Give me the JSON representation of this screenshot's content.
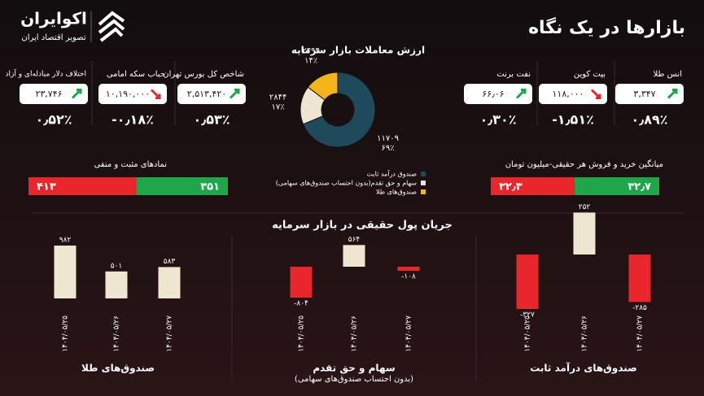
{
  "header": {
    "title": "بازارها در یک نگاه",
    "brand": "اکوایران",
    "tagline": "تصویر اقتصاد ایران"
  },
  "indicators": [
    {
      "title": "انس طلا",
      "value": "۳,۳۴۷",
      "change": "۰٫۸۹٪",
      "direction": "up"
    },
    {
      "title": "بیت کوین",
      "value": "۱۱۸,۰۰۰",
      "change": "-۱٫۵۱٪",
      "direction": "down"
    },
    {
      "title": "نفت برنت",
      "value": "۶۶٫۰۶",
      "change": "۰٫۳۰٪",
      "direction": "up"
    },
    {
      "title": "شاخص کل بورس تهران",
      "value": "۲,۵۱۳,۴۲۰",
      "change": "۰٫۵۳٪",
      "direction": "up"
    },
    {
      "title": "حباب سکه امامی",
      "value": "۱۰,۱۹۰,۰۰۰",
      "change": "-۰٫۱۸٪",
      "direction": "down"
    },
    {
      "title": "اختلاف دلار مبادله‌ای و آزاد",
      "value": "۲۳,۷۴۶",
      "change": "۰٫۵۲٪",
      "direction": "up"
    }
  ],
  "money_flow_title": "جریان پول حقیقی در بازار سرمایه",
  "chart_data": [
    {
      "type": "pie",
      "title": "ارزش معاملات  بازار سرمایه",
      "categories": [
        "صندوق درآمد ثابت",
        "سهام و حق تقدم(بدون احتساب صندوق‌های سهامی)",
        "صندوق‌های طلا"
      ],
      "values": [
        11709,
        2844,
        2494
      ],
      "value_labels": [
        "۱۱۷۰۹",
        "۲۸۴۴",
        "۲۴۹۴"
      ],
      "percents": [
        69,
        17,
        14
      ],
      "percent_labels": [
        "۶۹٪",
        "۱۷٪",
        "۱۴٪"
      ],
      "colors": [
        "#1e4a5b",
        "#efe6d2",
        "#f4b41a"
      ]
    },
    {
      "type": "split_bar",
      "title": "نمادهای مثبت و منفی",
      "values": [
        413,
        351
      ],
      "value_labels": [
        "۴۱۳",
        "۳۵۱"
      ],
      "colors": [
        "#e8262b",
        "#1fa64a"
      ]
    },
    {
      "type": "split_bar",
      "title": "میانگین خرید و فروش هر حقیقی-میلیون تومان",
      "values": [
        32.3,
        32.7
      ],
      "value_labels": [
        "۳۲٫۳",
        "۳۲٫۷"
      ],
      "colors": [
        "#e8262b",
        "#1fa64a"
      ]
    },
    {
      "type": "bar",
      "title": "صندوق‌های طلا",
      "categories": [
        "۱۴۰۴/۰۵/۲۵",
        "۱۴۰۴/۰۵/۲۶",
        "۱۴۰۴/۰۵/۲۷"
      ],
      "values": [
        982,
        501,
        583
      ],
      "value_labels": [
        "۹۸۲",
        "۵۰۱",
        "۵۸۳"
      ],
      "positive_color": "#efe6d2",
      "negative_color": "#e8262b"
    },
    {
      "type": "bar",
      "title": "سهام و حق تقدم",
      "subtitle": "(بدون احتساب صندوق‌های سهامی)",
      "categories": [
        "۱۴۰۴/۰۵/۲۵",
        "۱۴۰۴/۰۵/۲۶",
        "۱۴۰۴/۰۵/۲۷"
      ],
      "values": [
        -804,
        564,
        -108
      ],
      "value_labels": [
        "-۸۰۴",
        "۵۶۴",
        "-۱۰۸"
      ],
      "positive_color": "#efe6d2",
      "negative_color": "#e8262b"
    },
    {
      "type": "bar",
      "title": "صندوق‌های درآمد ثابت",
      "categories": [
        "۱۴۰۴/۰۵/۲۵",
        "۱۴۰۴/۰۵/۲۶",
        "۱۴۰۴/۰۵/۲۷"
      ],
      "values": [
        -327,
        252,
        -285
      ],
      "value_labels": [
        "-۳۲۷",
        "۲۵۲",
        "-۲۸۵"
      ],
      "positive_color": "#efe6d2",
      "negative_color": "#e8262b"
    }
  ]
}
